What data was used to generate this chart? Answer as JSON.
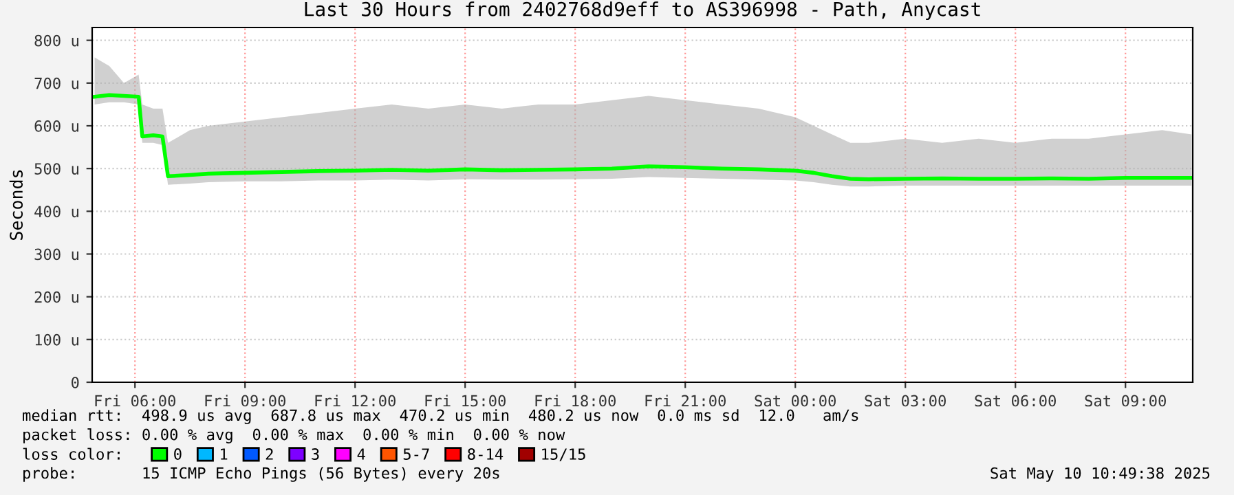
{
  "chart_data": {
    "type": "line",
    "title": "Last 30 Hours from 2402768d9eff to AS396998 - Path, Anycast",
    "ylabel": "Seconds",
    "legend_title": "loss color:",
    "xlim": [
      "2025-05-09T04:50",
      "2025-05-10T10:50"
    ],
    "xticks": [
      {
        "value": "2025-05-09T06:00",
        "label": "Fri 06:00"
      },
      {
        "value": "2025-05-09T09:00",
        "label": "Fri 09:00"
      },
      {
        "value": "2025-05-09T12:00",
        "label": "Fri 12:00"
      },
      {
        "value": "2025-05-09T15:00",
        "label": "Fri 15:00"
      },
      {
        "value": "2025-05-09T18:00",
        "label": "Fri 18:00"
      },
      {
        "value": "2025-05-09T21:00",
        "label": "Fri 21:00"
      },
      {
        "value": "2025-05-10T00:00",
        "label": "Sat 00:00"
      },
      {
        "value": "2025-05-10T03:00",
        "label": "Sat 03:00"
      },
      {
        "value": "2025-05-10T06:00",
        "label": "Sat 06:00"
      },
      {
        "value": "2025-05-10T09:00",
        "label": "Sat 09:00"
      }
    ],
    "ylim": [
      0,
      830
    ],
    "yticks": [
      {
        "value": 0,
        "label": "0"
      },
      {
        "value": 100,
        "label": "100 u"
      },
      {
        "value": 200,
        "label": "200 u"
      },
      {
        "value": 300,
        "label": "300 u"
      },
      {
        "value": 400,
        "label": "400 u"
      },
      {
        "value": 500,
        "label": "500 u"
      },
      {
        "value": 600,
        "label": "600 u"
      },
      {
        "value": 700,
        "label": "700 u"
      },
      {
        "value": 800,
        "label": "800 u"
      }
    ],
    "grid": true,
    "legend": "bottom",
    "series": [
      {
        "name": "0",
        "color": "#00ff00",
        "x": [
          "2025-05-09T04:54",
          "2025-05-09T05:18",
          "2025-05-09T05:42",
          "2025-05-09T06:06",
          "2025-05-09T06:12",
          "2025-05-09T06:30",
          "2025-05-09T06:45",
          "2025-05-09T06:54",
          "2025-05-09T07:30",
          "2025-05-09T08:00",
          "2025-05-09T09:00",
          "2025-05-09T10:00",
          "2025-05-09T11:00",
          "2025-05-09T12:00",
          "2025-05-09T13:00",
          "2025-05-09T14:00",
          "2025-05-09T15:00",
          "2025-05-09T16:00",
          "2025-05-09T17:00",
          "2025-05-09T18:00",
          "2025-05-09T19:00",
          "2025-05-09T20:00",
          "2025-05-09T21:00",
          "2025-05-09T22:00",
          "2025-05-09T23:00",
          "2025-05-10T00:00",
          "2025-05-10T00:30",
          "2025-05-10T01:00",
          "2025-05-10T01:30",
          "2025-05-10T02:00",
          "2025-05-10T03:00",
          "2025-05-10T04:00",
          "2025-05-10T05:00",
          "2025-05-10T06:00",
          "2025-05-10T07:00",
          "2025-05-10T08:00",
          "2025-05-10T09:00",
          "2025-05-10T10:00",
          "2025-05-10T10:48"
        ],
        "values": [
          668,
          672,
          670,
          668,
          575,
          578,
          575,
          482,
          485,
          488,
          490,
          492,
          494,
          495,
          497,
          495,
          498,
          496,
          497,
          498,
          500,
          505,
          503,
          500,
          498,
          495,
          490,
          482,
          476,
          475,
          476,
          477,
          476,
          476,
          477,
          476,
          478,
          478,
          478
        ],
        "lower": [
          650,
          655,
          655,
          650,
          560,
          560,
          555,
          462,
          465,
          468,
          470,
          470,
          472,
          472,
          474,
          472,
          475,
          474,
          474,
          475,
          476,
          480,
          478,
          476,
          474,
          472,
          468,
          462,
          458,
          458,
          460,
          460,
          460,
          460,
          460,
          460,
          460,
          460,
          460
        ],
        "upper": [
          760,
          740,
          700,
          720,
          650,
          640,
          640,
          560,
          590,
          600,
          610,
          620,
          630,
          640,
          650,
          640,
          650,
          640,
          650,
          650,
          660,
          670,
          660,
          650,
          640,
          620,
          600,
          580,
          560,
          560,
          570,
          560,
          570,
          560,
          570,
          570,
          580,
          590,
          580
        ]
      },
      {
        "name": "1",
        "color": "#00b8ff"
      },
      {
        "name": "2",
        "color": "#0059ff"
      },
      {
        "name": "3",
        "color": "#7e00ff"
      },
      {
        "name": "4",
        "color": "#ff00ff"
      },
      {
        "name": "5-7",
        "color": "#ff5500"
      },
      {
        "name": "8-14",
        "color": "#ff0000"
      },
      {
        "name": "15/15",
        "color": "#a10000"
      }
    ],
    "annotations": [
      "median rtt:  498.9 us avg  687.8 us max  470.2 us min  480.2 us now  0.0 ms sd  12.0   am/s",
      "packet loss: 0.00 % avg  0.00 % max  0.00 % min  0.00 % now",
      "probe:       15 ICMP Echo Pings (56 Bytes) every 20s",
      "Sat May 10 10:49:38 2025"
    ]
  }
}
